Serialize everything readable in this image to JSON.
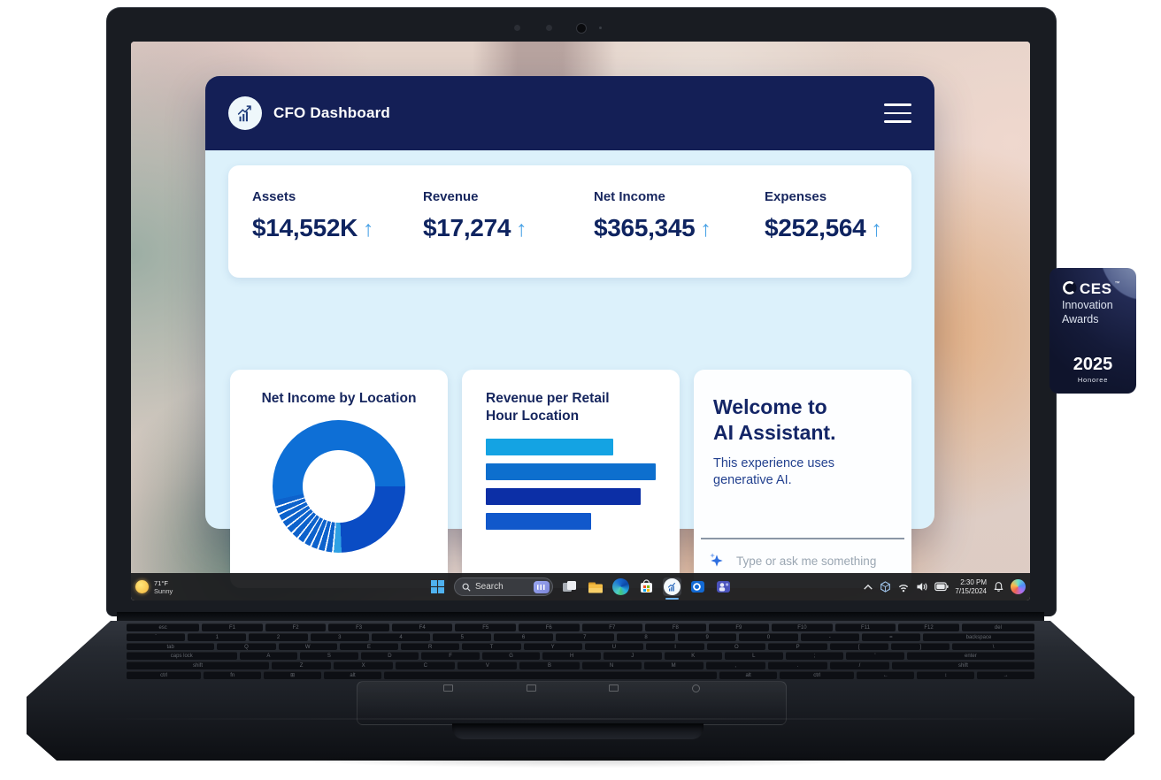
{
  "colors": {
    "header_navy": "#141f56",
    "body_light_blue": "#dcf1fb",
    "text_navy": "#16265e",
    "arrow_blue": "#4aa3e6",
    "placeholder_gray": "#9aa6b2"
  },
  "window": {
    "header": {
      "title": "CFO Dashboard",
      "logo_icon": "chart-growth-icon",
      "menu_icon": "hamburger-menu-icon"
    },
    "arrow_char": "↑",
    "kpis": [
      {
        "label": "Assets",
        "value": "$14,552K"
      },
      {
        "label": "Revenue",
        "value": "$17,274"
      },
      {
        "label": "Net Income",
        "value": "$365,345"
      },
      {
        "label": "Expenses",
        "value": "$252,564"
      }
    ],
    "ai": {
      "title_lines": [
        "Welcome to",
        "AI Assistant."
      ],
      "body": "This experience uses generative AI.",
      "input_placeholder": "Type or ask me something",
      "sparkle_icon": "sparkle-icon"
    }
  },
  "chart_data": [
    {
      "type": "pie",
      "style": "donut",
      "title": "Net Income by Location",
      "legend": false,
      "data_labels": false,
      "start_angle_deg": 258,
      "segments": [
        {
          "pct": 53.3,
          "color": "#0e6fd6"
        },
        {
          "pct": 24.4,
          "color": "#0a4cc4"
        },
        {
          "pct": 1.9,
          "color": "#2fa1e4"
        },
        {
          "pct": 20.3,
          "color": "#0d62cc",
          "striped_slices": 11,
          "gap_color": "#ffffff",
          "gap_deg": 1.5
        }
      ]
    },
    {
      "type": "bar",
      "orientation": "horizontal",
      "title": "Revenue per Retail Hour Location",
      "title_lines": [
        "Revenue per Retail",
        "Hour Location"
      ],
      "axis_labels_visible": false,
      "values_rel": [
        0.75,
        1.0,
        0.91,
        0.62
      ],
      "colors": [
        "#14a3e3",
        "#0d6fce",
        "#0c2fa6",
        "#1158cb"
      ]
    }
  ],
  "taskbar": {
    "weather": {
      "temp": "71°F",
      "condition": "Sunny",
      "icon": "sun-icon"
    },
    "start_icon": "windows-start-icon",
    "search": {
      "placeholder": "Search",
      "left_icon": "search-icon",
      "right_icon": "touch-keyboard-icon"
    },
    "app_icons": [
      "task-view-icon",
      "file-explorer-icon",
      "edge-browser-icon",
      "microsoft-store-icon",
      "cfo-dashboard-app-icon",
      "outlook-icon",
      "teams-icon"
    ],
    "active_app": "cfo-dashboard-app-icon",
    "tray": {
      "icons": [
        "chevron-up-icon",
        "device-cube-icon",
        "wifi-icon",
        "volume-icon",
        "battery-icon"
      ],
      "time": "2:30 PM",
      "date": "7/15/2024",
      "right_icons": [
        "notification-bell-icon",
        "copilot-icon"
      ]
    }
  },
  "badge": {
    "logo_text": "CES",
    "trademark": "™",
    "line1": "Innovation",
    "line2": "Awards",
    "year": "2025",
    "subtitle": "Honoree"
  },
  "keyboard": {
    "rows": [
      [
        "esc|1.2",
        "F1|1",
        "F2|1",
        "F3|1",
        "F4|1",
        "F5|1",
        "F6|1",
        "F7|1",
        "F8|1",
        "F9|1",
        "F10|1",
        "F11|1",
        "F12|1",
        "del|1.2"
      ],
      [
        "`|1",
        "1|1",
        "2|1",
        "3|1",
        "4|1",
        "5|1",
        "6|1",
        "7|1",
        "8|1",
        "9|1",
        "0|1",
        "-|1",
        "=|1",
        "backspace|1.9"
      ],
      [
        "tab|1.5",
        "Q|1",
        "W|1",
        "E|1",
        "R|1",
        "T|1",
        "Y|1",
        "U|1",
        "I|1",
        "O|1",
        "P|1",
        "[|1",
        "]|1",
        "\\|1.4"
      ],
      [
        "caps lock|1.9",
        "A|1",
        "S|1",
        "D|1",
        "F|1",
        "G|1",
        "H|1",
        "J|1",
        "K|1",
        "L|1",
        ";|1",
        "'|1",
        "enter|2.2"
      ],
      [
        "shift|2.4",
        "Z|1",
        "X|1",
        "C|1",
        "V|1",
        "B|1",
        "N|1",
        "M|1",
        ",|1",
        ".|1",
        "/|1",
        "shift|2.4"
      ],
      [
        "ctrl|1.3",
        "fn|1",
        "⊞|1",
        "alt|1",
        "|5.8",
        "alt|1",
        "ctrl|1.3",
        "←|1",
        "↕|1",
        "→|1"
      ]
    ],
    "touchpad_glyph_icons": [
      "touchpad-glyph-1",
      "touchpad-glyph-2",
      "touchpad-glyph-3",
      "touchpad-glyph-4"
    ]
  }
}
